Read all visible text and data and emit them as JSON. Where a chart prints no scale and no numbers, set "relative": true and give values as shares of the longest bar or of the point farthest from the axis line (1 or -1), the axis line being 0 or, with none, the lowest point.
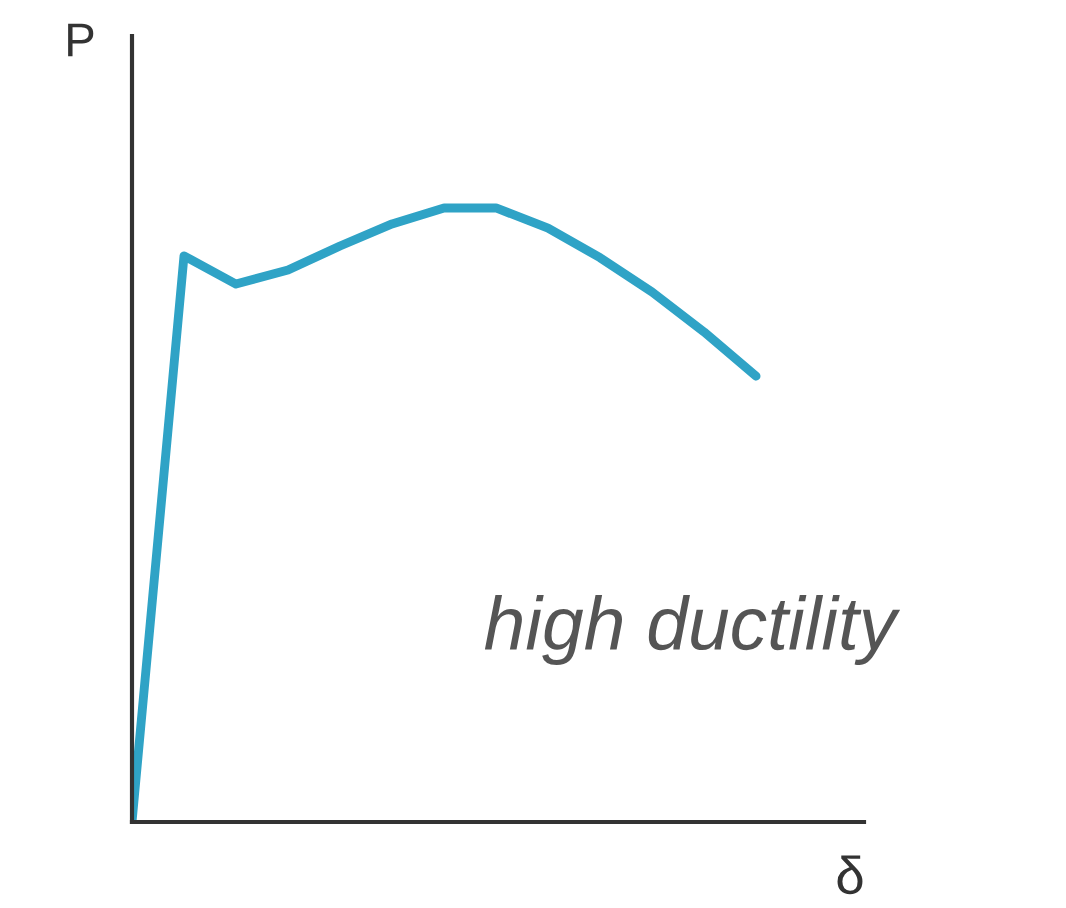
{
  "chart_data": {
    "type": "line",
    "relative": true,
    "xlabel": "δ",
    "ylabel": "P",
    "annotations": [
      "high ductility"
    ],
    "marker": "none",
    "line_style": "solid",
    "categories": [
      null,
      null,
      null,
      null,
      null,
      null,
      null,
      null,
      null,
      null,
      null,
      null,
      null
    ],
    "series": [
      {
        "color": "#2fa3c6",
        "values": [
          0,
          0.922,
          0.876,
          0.899,
          0.938,
          0.974,
          1,
          1,
          0.967,
          0.919,
          0.863,
          0.798,
          0.726
        ]
      }
    ]
  }
}
